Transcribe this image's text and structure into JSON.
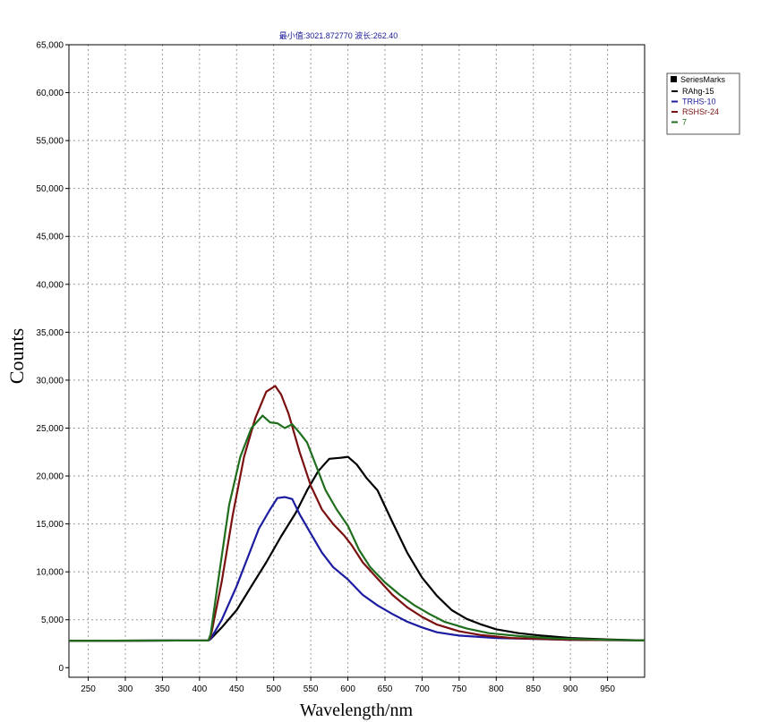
{
  "top_info": "最小值:3021.872770  波长:262.40",
  "chart_data": {
    "type": "line",
    "xlabel": "Wavelength/nm",
    "ylabel": "Counts",
    "xlim": [
      224,
      1000
    ],
    "ylim": [
      -1000,
      65000
    ],
    "x_ticks": [
      250,
      300,
      350,
      400,
      450,
      500,
      550,
      600,
      650,
      700,
      750,
      800,
      850,
      900,
      950
    ],
    "y_ticks": [
      0,
      5000,
      10000,
      15000,
      20000,
      25000,
      30000,
      35000,
      40000,
      45000,
      50000,
      55000,
      60000,
      65000
    ],
    "x_tick_labels": [
      "250",
      "300",
      "350",
      "400",
      "450",
      "500",
      "550",
      "600",
      "650",
      "700",
      "750",
      "800",
      "850",
      "900",
      "950"
    ],
    "y_tick_labels": [
      "0",
      "5,000",
      "10,000",
      "15,000",
      "20,000",
      "25,000",
      "30,000",
      "35,000",
      "40,000",
      "45,000",
      "50,000",
      "55,000",
      "60,000",
      "65,000"
    ],
    "grid": true,
    "legend_position": "top-right",
    "legend_header": "SeriesMarks",
    "series": [
      {
        "name": "RAhg-15",
        "color": "#000000",
        "points": [
          [
            224,
            2800
          ],
          [
            412,
            2850
          ],
          [
            415,
            3000
          ],
          [
            430,
            4200
          ],
          [
            450,
            6000
          ],
          [
            470,
            8500
          ],
          [
            490,
            11000
          ],
          [
            510,
            13700
          ],
          [
            530,
            16200
          ],
          [
            545,
            18500
          ],
          [
            560,
            20500
          ],
          [
            575,
            21800
          ],
          [
            590,
            21900
          ],
          [
            600,
            22000
          ],
          [
            612,
            21200
          ],
          [
            625,
            19800
          ],
          [
            640,
            18500
          ],
          [
            660,
            15200
          ],
          [
            680,
            12000
          ],
          [
            700,
            9400
          ],
          [
            720,
            7500
          ],
          [
            740,
            6000
          ],
          [
            760,
            5100
          ],
          [
            780,
            4500
          ],
          [
            800,
            4000
          ],
          [
            830,
            3600
          ],
          [
            860,
            3350
          ],
          [
            900,
            3100
          ],
          [
            950,
            2950
          ],
          [
            1000,
            2850
          ]
        ]
      },
      {
        "name": "TRHS-10",
        "color": "#1c1ca0",
        "points": [
          [
            224,
            2800
          ],
          [
            412,
            2850
          ],
          [
            415,
            3000
          ],
          [
            430,
            5000
          ],
          [
            450,
            8500
          ],
          [
            465,
            11500
          ],
          [
            480,
            14500
          ],
          [
            495,
            16500
          ],
          [
            505,
            17700
          ],
          [
            515,
            17800
          ],
          [
            525,
            17600
          ],
          [
            535,
            16000
          ],
          [
            550,
            14000
          ],
          [
            565,
            12000
          ],
          [
            580,
            10500
          ],
          [
            600,
            9200
          ],
          [
            620,
            7600
          ],
          [
            640,
            6500
          ],
          [
            660,
            5600
          ],
          [
            680,
            4800
          ],
          [
            700,
            4200
          ],
          [
            720,
            3700
          ],
          [
            750,
            3350
          ],
          [
            800,
            3100
          ],
          [
            850,
            3000
          ],
          [
            900,
            2900
          ],
          [
            1000,
            2850
          ]
        ]
      },
      {
        "name": "RSHSr-24",
        "color": "#7a1010",
        "points": [
          [
            224,
            2800
          ],
          [
            412,
            2850
          ],
          [
            415,
            3200
          ],
          [
            430,
            9000
          ],
          [
            445,
            16000
          ],
          [
            460,
            22000
          ],
          [
            475,
            26000
          ],
          [
            490,
            28800
          ],
          [
            502,
            29400
          ],
          [
            510,
            28500
          ],
          [
            520,
            26500
          ],
          [
            535,
            22500
          ],
          [
            550,
            19000
          ],
          [
            565,
            16500
          ],
          [
            580,
            15000
          ],
          [
            595,
            13800
          ],
          [
            605,
            12800
          ],
          [
            620,
            11000
          ],
          [
            640,
            9300
          ],
          [
            660,
            7600
          ],
          [
            680,
            6300
          ],
          [
            700,
            5300
          ],
          [
            720,
            4500
          ],
          [
            750,
            3800
          ],
          [
            780,
            3400
          ],
          [
            820,
            3100
          ],
          [
            900,
            2900
          ],
          [
            1000,
            2850
          ]
        ]
      },
      {
        "name": "7",
        "color": "#1e6e1e",
        "points": [
          [
            224,
            2800
          ],
          [
            412,
            2850
          ],
          [
            415,
            3500
          ],
          [
            425,
            9000
          ],
          [
            440,
            17000
          ],
          [
            455,
            22000
          ],
          [
            470,
            25000
          ],
          [
            485,
            26300
          ],
          [
            495,
            25600
          ],
          [
            505,
            25500
          ],
          [
            515,
            25000
          ],
          [
            525,
            25400
          ],
          [
            535,
            24500
          ],
          [
            545,
            23500
          ],
          [
            555,
            21500
          ],
          [
            570,
            18500
          ],
          [
            585,
            16500
          ],
          [
            600,
            14800
          ],
          [
            615,
            12300
          ],
          [
            630,
            10500
          ],
          [
            650,
            8900
          ],
          [
            670,
            7600
          ],
          [
            690,
            6500
          ],
          [
            710,
            5600
          ],
          [
            730,
            4800
          ],
          [
            760,
            4100
          ],
          [
            790,
            3600
          ],
          [
            830,
            3300
          ],
          [
            880,
            3050
          ],
          [
            950,
            2900
          ],
          [
            1000,
            2850
          ]
        ]
      }
    ]
  }
}
